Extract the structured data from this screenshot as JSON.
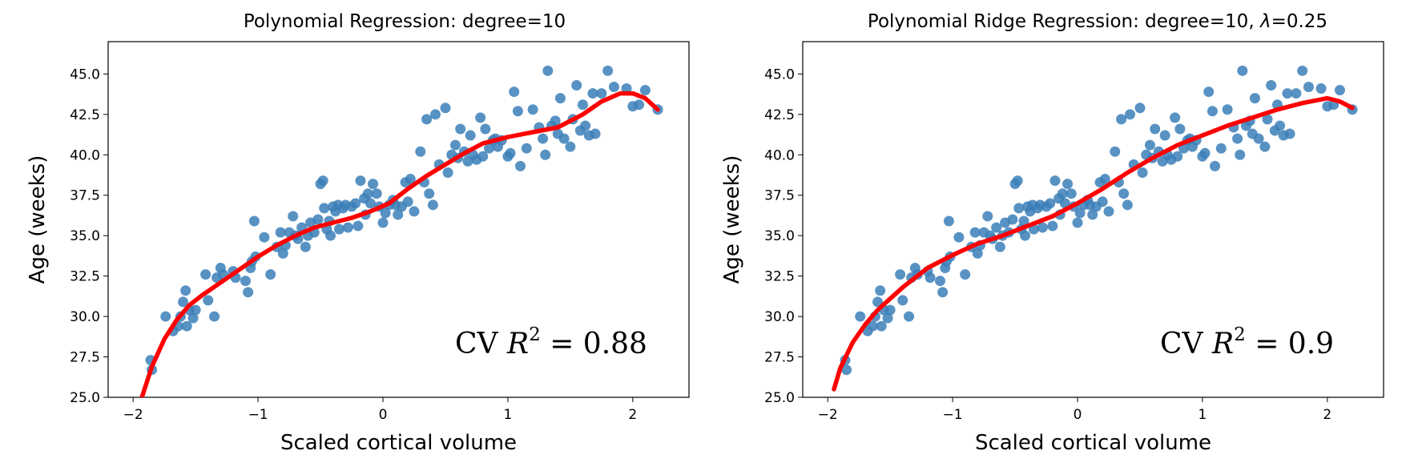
{
  "chart_data": [
    {
      "type": "scatter",
      "title": "Polynomial Regression: degree=10",
      "xlabel": "Scaled cortical volume",
      "ylabel": "Age (weeks)",
      "xlim": [
        -2.2,
        2.45
      ],
      "ylim": [
        25.0,
        47.0
      ],
      "xticks": [
        -2,
        -1,
        0,
        1,
        2
      ],
      "xtick_labels": [
        "−2",
        "−1",
        "0",
        "1",
        "2"
      ],
      "yticks": [
        25.0,
        27.5,
        30.0,
        32.5,
        35.0,
        37.5,
        40.0,
        42.5,
        45.0
      ],
      "ytick_labels": [
        "25.0",
        "27.5",
        "30.0",
        "32.5",
        "35.0",
        "37.5",
        "40.0",
        "42.5",
        "45.0"
      ],
      "grid": false,
      "scatter_color": "#3b7fb9",
      "curve_color": "#ff0000",
      "annotation": {
        "prefix": "CV",
        "symbol": "R",
        "sup": "2",
        "value": "= 0.88"
      },
      "curve": {
        "x": [
          -1.93,
          -1.85,
          -1.75,
          -1.65,
          -1.55,
          -1.45,
          -1.3,
          -1.15,
          -1.0,
          -0.85,
          -0.7,
          -0.55,
          -0.4,
          -0.25,
          -0.1,
          0.05,
          0.2,
          0.35,
          0.5,
          0.65,
          0.8,
          1.0,
          1.2,
          1.4,
          1.6,
          1.75,
          1.9,
          2.0,
          2.1,
          2.2
        ],
        "y": [
          25.0,
          26.9,
          28.6,
          29.8,
          30.7,
          31.3,
          32.1,
          32.9,
          33.7,
          34.4,
          35.0,
          35.5,
          35.8,
          36.1,
          36.5,
          37.0,
          37.9,
          38.7,
          39.4,
          40.1,
          40.7,
          41.1,
          41.4,
          41.7,
          42.5,
          43.3,
          43.8,
          43.8,
          43.5,
          42.8
        ]
      },
      "points": {
        "x": [
          -1.86,
          -1.85,
          -1.74,
          -1.68,
          -1.64,
          -1.62,
          -1.6,
          -1.58,
          -1.57,
          -1.55,
          -1.52,
          -1.5,
          -1.42,
          -1.4,
          -1.35,
          -1.33,
          -1.3,
          -1.28,
          -1.2,
          -1.18,
          -1.1,
          -1.08,
          -1.06,
          -1.05,
          -1.03,
          -1.02,
          -0.95,
          -0.9,
          -0.85,
          -0.82,
          -0.8,
          -0.78,
          -0.75,
          -0.72,
          -0.7,
          -0.68,
          -0.65,
          -0.62,
          -0.6,
          -0.58,
          -0.55,
          -0.52,
          -0.5,
          -0.48,
          -0.47,
          -0.45,
          -0.43,
          -0.42,
          -0.4,
          -0.38,
          -0.36,
          -0.35,
          -0.32,
          -0.3,
          -0.28,
          -0.25,
          -0.22,
          -0.2,
          -0.18,
          -0.15,
          -0.14,
          -0.12,
          -0.1,
          -0.08,
          -0.05,
          -0.03,
          0.0,
          0.02,
          0.05,
          0.08,
          0.1,
          0.12,
          0.15,
          0.18,
          0.2,
          0.22,
          0.25,
          0.3,
          0.33,
          0.35,
          0.37,
          0.4,
          0.42,
          0.45,
          0.5,
          0.52,
          0.55,
          0.58,
          0.6,
          0.62,
          0.65,
          0.68,
          0.7,
          0.72,
          0.75,
          0.78,
          0.8,
          0.82,
          0.85,
          0.88,
          0.9,
          0.92,
          0.95,
          1.0,
          1.02,
          1.05,
          1.08,
          1.1,
          1.15,
          1.2,
          1.25,
          1.28,
          1.3,
          1.32,
          1.35,
          1.38,
          1.4,
          1.42,
          1.45,
          1.5,
          1.52,
          1.55,
          1.58,
          1.6,
          1.62,
          1.65,
          1.68,
          1.7,
          1.75,
          1.8,
          1.85,
          1.95,
          2.0,
          2.05,
          2.1,
          2.2
        ],
        "y": [
          27.3,
          26.7,
          30.0,
          29.1,
          29.4,
          30.0,
          30.9,
          31.6,
          29.4,
          30.4,
          29.9,
          30.4,
          32.6,
          31.0,
          30.0,
          32.4,
          33.0,
          32.6,
          32.8,
          32.4,
          32.2,
          31.5,
          33.0,
          33.4,
          35.9,
          33.7,
          34.9,
          32.6,
          34.3,
          35.2,
          33.9,
          34.4,
          35.2,
          36.2,
          35.0,
          34.8,
          35.5,
          34.3,
          35.0,
          35.8,
          35.2,
          36.0,
          38.2,
          38.4,
          36.7,
          35.4,
          35.9,
          35.0,
          36.8,
          36.5,
          36.9,
          35.4,
          36.7,
          36.9,
          35.5,
          36.8,
          37.0,
          35.6,
          38.4,
          37.3,
          36.3,
          37.6,
          37.0,
          38.2,
          37.6,
          36.8,
          35.8,
          36.4,
          36.9,
          37.2,
          36.9,
          36.3,
          36.8,
          38.3,
          37.1,
          38.5,
          36.5,
          40.2,
          38.3,
          42.2,
          37.6,
          36.9,
          42.5,
          39.4,
          42.9,
          38.9,
          40.0,
          40.6,
          39.8,
          41.6,
          40.2,
          39.6,
          41.2,
          40.0,
          39.7,
          42.3,
          39.9,
          41.6,
          40.4,
          40.9,
          41.0,
          40.5,
          40.9,
          39.9,
          40.1,
          43.9,
          42.7,
          39.3,
          40.4,
          42.8,
          41.7,
          41.0,
          40.0,
          45.2,
          41.8,
          42.1,
          41.3,
          43.5,
          41.0,
          40.5,
          42.2,
          44.3,
          41.5,
          43.1,
          41.8,
          41.2,
          43.8,
          41.3,
          43.8,
          45.2,
          44.2,
          44.1,
          43.0,
          43.1,
          44.0,
          42.8
        ]
      }
    },
    {
      "type": "scatter",
      "title": "Polynomial Ridge Regression: degree=10, ",
      "title_symbol": "λ",
      "title_suffix": "=0.25",
      "xlabel": "Scaled cortical volume",
      "ylabel": "Age (weeks)",
      "xlim": [
        -2.2,
        2.45
      ],
      "ylim": [
        25.0,
        47.0
      ],
      "xticks": [
        -2,
        -1,
        0,
        1,
        2
      ],
      "xtick_labels": [
        "−2",
        "−1",
        "0",
        "1",
        "2"
      ],
      "yticks": [
        25.0,
        27.5,
        30.0,
        32.5,
        35.0,
        37.5,
        40.0,
        42.5,
        45.0
      ],
      "ytick_labels": [
        "25.0",
        "27.5",
        "30.0",
        "32.5",
        "35.0",
        "37.5",
        "40.0",
        "42.5",
        "45.0"
      ],
      "grid": false,
      "scatter_color": "#3b7fb9",
      "curve_color": "#ff0000",
      "annotation": {
        "prefix": "CV",
        "symbol": "R",
        "sup": "2",
        "value": "= 0.9"
      },
      "curve": {
        "x": [
          -1.95,
          -1.9,
          -1.8,
          -1.7,
          -1.6,
          -1.5,
          -1.4,
          -1.3,
          -1.2,
          -1.1,
          -1.0,
          -0.8,
          -0.6,
          -0.4,
          -0.2,
          0.0,
          0.2,
          0.4,
          0.6,
          0.8,
          1.0,
          1.2,
          1.4,
          1.6,
          1.8,
          2.0,
          2.1,
          2.2
        ],
        "y": [
          25.5,
          26.8,
          28.4,
          29.5,
          30.4,
          31.1,
          31.8,
          32.4,
          33.0,
          33.4,
          33.8,
          34.5,
          35.0,
          35.6,
          36.2,
          37.0,
          37.9,
          38.9,
          39.8,
          40.6,
          41.2,
          41.8,
          42.3,
          42.8,
          43.2,
          43.5,
          43.3,
          42.9
        ]
      },
      "points": {
        "x": [
          -1.86,
          -1.85,
          -1.74,
          -1.68,
          -1.64,
          -1.62,
          -1.6,
          -1.58,
          -1.57,
          -1.55,
          -1.52,
          -1.5,
          -1.42,
          -1.4,
          -1.35,
          -1.33,
          -1.3,
          -1.28,
          -1.2,
          -1.18,
          -1.1,
          -1.08,
          -1.06,
          -1.05,
          -1.03,
          -1.02,
          -0.95,
          -0.9,
          -0.85,
          -0.82,
          -0.8,
          -0.78,
          -0.75,
          -0.72,
          -0.7,
          -0.68,
          -0.65,
          -0.62,
          -0.6,
          -0.58,
          -0.55,
          -0.52,
          -0.5,
          -0.48,
          -0.47,
          -0.45,
          -0.43,
          -0.42,
          -0.4,
          -0.38,
          -0.36,
          -0.35,
          -0.32,
          -0.3,
          -0.28,
          -0.25,
          -0.22,
          -0.2,
          -0.18,
          -0.15,
          -0.14,
          -0.12,
          -0.1,
          -0.08,
          -0.05,
          -0.03,
          0.0,
          0.02,
          0.05,
          0.08,
          0.1,
          0.12,
          0.15,
          0.18,
          0.2,
          0.22,
          0.25,
          0.3,
          0.33,
          0.35,
          0.37,
          0.4,
          0.42,
          0.45,
          0.5,
          0.52,
          0.55,
          0.58,
          0.6,
          0.62,
          0.65,
          0.68,
          0.7,
          0.72,
          0.75,
          0.78,
          0.8,
          0.82,
          0.85,
          0.88,
          0.9,
          0.92,
          0.95,
          1.0,
          1.02,
          1.05,
          1.08,
          1.1,
          1.15,
          1.2,
          1.25,
          1.28,
          1.3,
          1.32,
          1.35,
          1.38,
          1.4,
          1.42,
          1.45,
          1.5,
          1.52,
          1.55,
          1.58,
          1.6,
          1.62,
          1.65,
          1.68,
          1.7,
          1.75,
          1.8,
          1.85,
          1.95,
          2.0,
          2.05,
          2.1,
          2.2
        ],
        "y": [
          27.3,
          26.7,
          30.0,
          29.1,
          29.4,
          30.0,
          30.9,
          31.6,
          29.4,
          30.4,
          29.9,
          30.4,
          32.6,
          31.0,
          30.0,
          32.4,
          33.0,
          32.6,
          32.8,
          32.4,
          32.2,
          31.5,
          33.0,
          33.4,
          35.9,
          33.7,
          34.9,
          32.6,
          34.3,
          35.2,
          33.9,
          34.4,
          35.2,
          36.2,
          35.0,
          34.8,
          35.5,
          34.3,
          35.0,
          35.8,
          35.2,
          36.0,
          38.2,
          38.4,
          36.7,
          35.4,
          35.9,
          35.0,
          36.8,
          36.5,
          36.9,
          35.4,
          36.7,
          36.9,
          35.5,
          36.8,
          37.0,
          35.6,
          38.4,
          37.3,
          36.3,
          37.6,
          37.0,
          38.2,
          37.6,
          36.8,
          35.8,
          36.4,
          36.9,
          37.2,
          36.9,
          36.3,
          36.8,
          38.3,
          37.1,
          38.5,
          36.5,
          40.2,
          38.3,
          42.2,
          37.6,
          36.9,
          42.5,
          39.4,
          42.9,
          38.9,
          40.0,
          40.6,
          39.8,
          41.6,
          40.2,
          39.6,
          41.2,
          40.0,
          39.7,
          42.3,
          39.9,
          41.6,
          40.4,
          40.9,
          41.0,
          40.5,
          40.9,
          39.9,
          40.1,
          43.9,
          42.7,
          39.3,
          40.4,
          42.8,
          41.7,
          41.0,
          40.0,
          45.2,
          41.8,
          42.1,
          41.3,
          43.5,
          41.0,
          40.5,
          42.2,
          44.3,
          41.5,
          43.1,
          41.8,
          41.2,
          43.8,
          41.3,
          43.8,
          45.2,
          44.2,
          44.1,
          43.0,
          43.1,
          44.0,
          42.8
        ]
      }
    }
  ]
}
